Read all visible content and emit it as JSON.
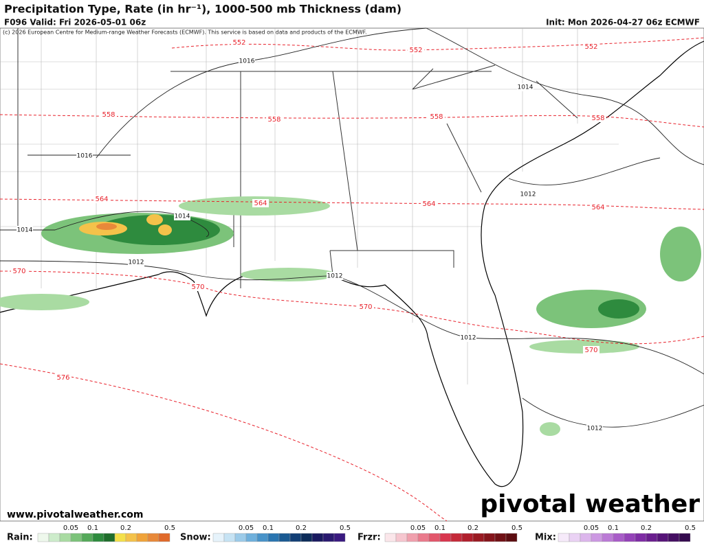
{
  "header": {
    "title": "Precipitation Type, Rate (in hr⁻¹), 1000-500 mb Thickness (dam)",
    "valid": "F096 Valid: Fri 2026-05-01 06z",
    "init": "Init: Mon 2026-04-27 06z ECMWF",
    "credit": "(c) 2026 European Centre for Medium-range Weather Forecasts (ECMWF). This service is based on data and products of the ECMWF."
  },
  "map": {
    "thickness_labels": [
      "552",
      "552",
      "552",
      "558",
      "558",
      "558",
      "558",
      "564",
      "564",
      "564",
      "564",
      "570",
      "570",
      "570",
      "570",
      "576"
    ],
    "pressure_labels": [
      "1016",
      "1016",
      "1014",
      "1014",
      "1014",
      "1012",
      "1012",
      "1012",
      "1012",
      "1012"
    ],
    "website": "www.pivotalweather.com",
    "logo": "pivotal weather"
  },
  "legend": {
    "rain": {
      "label": "Rain:",
      "ticks": [
        "0.05",
        "0.1",
        "0.2",
        "0.5"
      ]
    },
    "snow": {
      "label": "Snow:",
      "ticks": [
        "0.05",
        "0.1",
        "0.2",
        "0.5"
      ]
    },
    "frzr": {
      "label": "Frzr:",
      "ticks": [
        "0.05",
        "0.1",
        "0.2",
        "0.5"
      ]
    },
    "mix": {
      "label": "Mix:",
      "ticks": [
        "0.05",
        "0.1",
        "0.2",
        "0.5"
      ]
    }
  }
}
